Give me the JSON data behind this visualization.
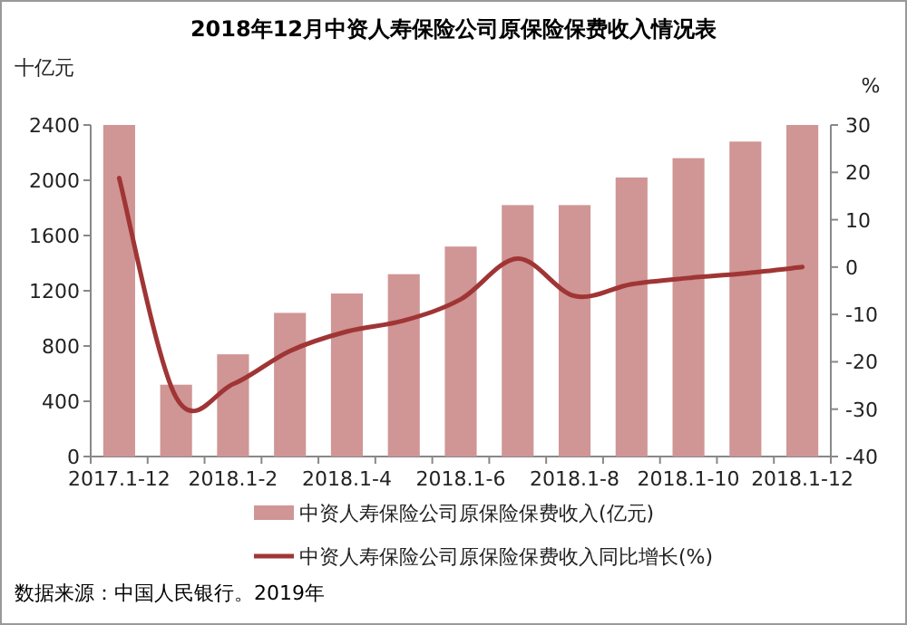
{
  "chart_data": {
    "type": "bar",
    "title": "2018年12月中资人寿保险公司原保险保费收入情况表",
    "ylabel": "十亿元",
    "y2label": "%",
    "categories": [
      "2017.1-12",
      null,
      "2018.1-2",
      null,
      "2018.1-4",
      null,
      "2018.1-6",
      null,
      "2018.1-8",
      null,
      "2018.1-10",
      null,
      "2018.1-12"
    ],
    "series": [
      {
        "name": "中资人寿保险公司原保险保费收入(亿元)",
        "color": "#d09595",
        "values": [
          2400,
          520,
          740,
          1040,
          1180,
          1320,
          1520,
          1820,
          1820,
          2020,
          2160,
          2280,
          2400
        ]
      },
      {
        "name": "中资人寿保险公司原保险保费收入同比增长(%)",
        "type": "line",
        "axis": "y2",
        "color": "#a03535",
        "values": [
          18.8,
          -27.5,
          -24.7,
          -17.7,
          -13.6,
          -11.3,
          -6.8,
          1.8,
          -6.1,
          -3.6,
          -2.3,
          -1.3,
          0
        ]
      }
    ],
    "ylim": [
      0,
      2400
    ],
    "yticks": [
      0,
      400,
      800,
      1200,
      1600,
      2000,
      2400
    ],
    "y2lim": [
      -40,
      30
    ],
    "y2ticks": [
      -40,
      -30,
      -20,
      -10,
      0,
      10,
      20,
      30
    ],
    "legend": "bottom",
    "annotations": [
      "数据来源：中国人民银行。2019年"
    ]
  }
}
